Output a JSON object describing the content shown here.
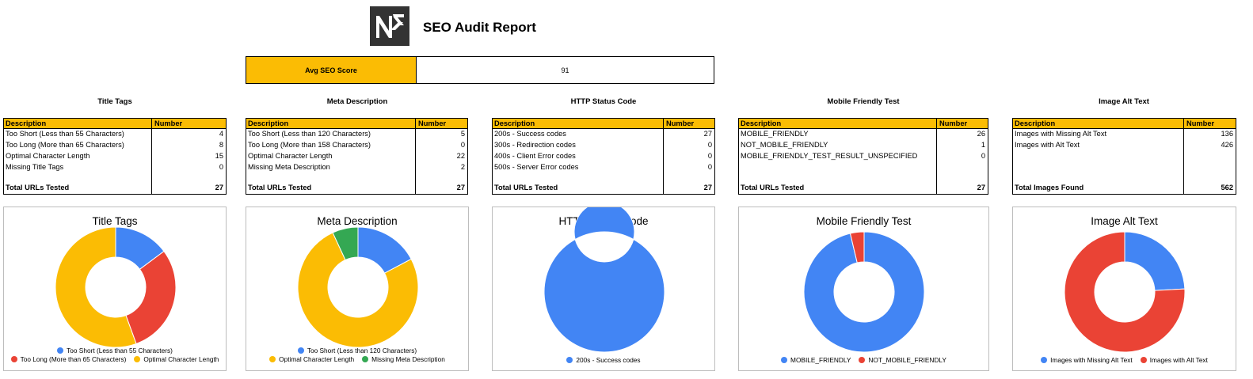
{
  "header": {
    "title": "SEO Audit Report",
    "logo_icon": "nk-logo-icon"
  },
  "score": {
    "label": "Avg SEO Score",
    "value": "91"
  },
  "colors": {
    "accent": "#fbbc04",
    "blue": "#4285f4",
    "red": "#ea4335",
    "yellow": "#fbbc04",
    "green": "#34a853"
  },
  "sections": [
    {
      "title": "Title Tags",
      "header": [
        "Description",
        "Number"
      ],
      "rows": [
        [
          "Too Short (Less than 55 Characters)",
          "4"
        ],
        [
          "Too Long (More than 65 Characters)",
          "8"
        ],
        [
          "Optimal Character Length",
          "15"
        ],
        [
          "Missing Title Tags",
          "0"
        ]
      ],
      "total": [
        "Total URLs Tested",
        "27"
      ]
    },
    {
      "title": "Meta Description",
      "header": [
        "Description",
        "Number"
      ],
      "rows": [
        [
          "Too Short (Less than 120 Characters)",
          "5"
        ],
        [
          "Too Long (More than 158 Characters)",
          "0"
        ],
        [
          "Optimal Character Length",
          "22"
        ],
        [
          "Missing Meta Description",
          "2"
        ]
      ],
      "total": [
        "Total URLs Tested",
        "27"
      ]
    },
    {
      "title": "HTTP Status Code",
      "header": [
        "Description",
        "Number"
      ],
      "rows": [
        [
          "200s - Success codes",
          "27"
        ],
        [
          "300s - Redirection codes",
          "0"
        ],
        [
          "400s - Client Error codes",
          "0"
        ],
        [
          "500s - Server Error codes",
          "0"
        ]
      ],
      "total": [
        "Total URLs Tested",
        "27"
      ]
    },
    {
      "title": "Mobile Friendly Test",
      "header": [
        "Description",
        "Number"
      ],
      "rows": [
        [
          "MOBILE_FRIENDLY",
          "26"
        ],
        [
          "NOT_MOBILE_FRIENDLY",
          "1"
        ],
        [
          "MOBILE_FRIENDLY_TEST_RESULT_UNSPECIFIED",
          "0"
        ]
      ],
      "total": [
        "Total URLs Tested",
        "27"
      ]
    },
    {
      "title": "Image Alt Text",
      "header": [
        "Description",
        "Number"
      ],
      "rows": [
        [
          "Images with Missing Alt Text",
          "136"
        ],
        [
          "Images with Alt Text",
          "426"
        ]
      ],
      "total": [
        "Total Images Found",
        "562"
      ]
    }
  ],
  "chart_data": [
    {
      "type": "pie",
      "title": "Title Tags",
      "donut": true,
      "categories": [
        "Too Short (Less than 55 Characters)",
        "Too Long (More than 65 Characters)",
        "Optimal Character Length"
      ],
      "values": [
        4,
        8,
        15
      ],
      "colors": [
        "#4285f4",
        "#ea4335",
        "#fbbc04"
      ],
      "legend_rows": [
        [
          "Too Short (Less than 55 Characters)"
        ],
        [
          "Too Long (More than 65 Characters)",
          "Optimal Character Length"
        ]
      ],
      "legend": "bottom"
    },
    {
      "type": "pie",
      "title": "Meta Description",
      "donut": true,
      "categories": [
        "Too Short (Less than 120 Characters)",
        "Optimal Character Length",
        "Missing Meta Description"
      ],
      "values": [
        5,
        22,
        2
      ],
      "colors": [
        "#4285f4",
        "#fbbc04",
        "#34a853"
      ],
      "legend_rows": [
        [
          "Too Short (Less than 120 Characters)"
        ],
        [
          "Optimal Character Length",
          "Missing Meta Description"
        ]
      ],
      "legend": "bottom"
    },
    {
      "type": "pie",
      "title": "HTTP Status Code",
      "donut": true,
      "categories": [
        "200s - Success codes"
      ],
      "values": [
        27
      ],
      "colors": [
        "#4285f4"
      ],
      "legend_rows": [
        [
          "200s - Success codes"
        ]
      ],
      "legend": "bottom"
    },
    {
      "type": "pie",
      "title": "Mobile Friendly Test",
      "donut": true,
      "categories": [
        "MOBILE_FRIENDLY",
        "NOT_MOBILE_FRIENDLY"
      ],
      "values": [
        26,
        1
      ],
      "colors": [
        "#4285f4",
        "#ea4335"
      ],
      "legend_rows": [
        [
          "MOBILE_FRIENDLY",
          "NOT_MOBILE_FRIENDLY"
        ]
      ],
      "legend": "bottom"
    },
    {
      "type": "pie",
      "title": "Image Alt Text",
      "donut": true,
      "categories": [
        "Images with Missing Alt Text",
        "Images with Alt Text"
      ],
      "values": [
        136,
        426
      ],
      "colors": [
        "#4285f4",
        "#ea4335"
      ],
      "legend_rows": [
        [
          "Images with Missing Alt Text",
          "Images with Alt Text"
        ]
      ],
      "legend": "bottom"
    }
  ]
}
